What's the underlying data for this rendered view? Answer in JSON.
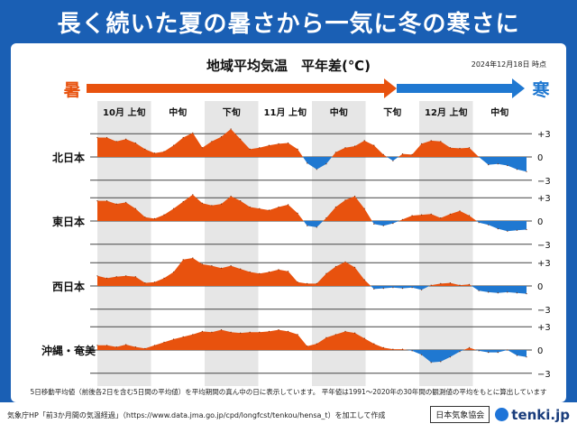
{
  "headline": "長く続いた夏の暑さから一気に冬の寒さに",
  "chart_data": {
    "type": "area",
    "title": "地域平均気温　平年差(℃)",
    "date_note": "2024年12月18日 時点",
    "arrow_left_label": "暑",
    "arrow_right_label": "寒",
    "periods": [
      "10月 上旬",
      "中旬",
      "下旬",
      "11月 上旬",
      "中旬",
      "下旬",
      "12月 上旬",
      "中旬"
    ],
    "yticks": [
      "+3",
      "0",
      "−3"
    ],
    "ylim": [
      -3,
      3
    ],
    "colors": {
      "warm": "#e8520e",
      "cold": "#1f78d1"
    },
    "series": [
      {
        "name": "北日本",
        "values": [
          2.5,
          2.5,
          2.0,
          2.3,
          1.8,
          1.0,
          0.5,
          0.7,
          1.5,
          2.5,
          3.1,
          1.2,
          2.0,
          2.6,
          3.6,
          2.3,
          1.0,
          1.2,
          1.5,
          1.7,
          1.8,
          1.0,
          -0.8,
          -1.6,
          -0.9,
          0.6,
          1.2,
          1.4,
          2.1,
          1.5,
          0.3,
          -0.5,
          0.4,
          0.3,
          1.7,
          2.1,
          2.0,
          1.2,
          1.1,
          1.2,
          0.0,
          -1.0,
          -0.9,
          -1.1,
          -1.6,
          -1.9
        ]
      },
      {
        "name": "東日本",
        "values": [
          2.6,
          2.6,
          2.2,
          2.4,
          1.6,
          0.5,
          0.3,
          0.8,
          1.6,
          2.5,
          3.4,
          2.3,
          2.0,
          2.2,
          3.2,
          2.6,
          1.8,
          1.6,
          1.4,
          1.8,
          2.1,
          1.0,
          -0.6,
          -0.8,
          0.4,
          1.8,
          2.7,
          3.2,
          1.6,
          -0.4,
          -0.6,
          -0.3,
          0.2,
          0.7,
          0.8,
          0.9,
          0.4,
          0.9,
          1.3,
          0.7,
          -0.2,
          -0.5,
          -1.0,
          -1.3,
          -1.2,
          -1.1
        ]
      },
      {
        "name": "西日本",
        "values": [
          1.3,
          1.0,
          1.2,
          1.3,
          1.2,
          0.4,
          0.5,
          1.0,
          1.8,
          3.4,
          3.6,
          2.8,
          2.6,
          2.3,
          2.6,
          2.2,
          1.8,
          1.6,
          1.8,
          2.1,
          1.9,
          0.5,
          0.3,
          0.3,
          1.6,
          2.5,
          3.1,
          2.4,
          0.8,
          -0.4,
          -0.3,
          -0.2,
          -0.3,
          -0.2,
          -0.5,
          0.1,
          0.3,
          0.4,
          0.1,
          0.2,
          -0.6,
          -0.8,
          -0.9,
          -0.8,
          -0.9,
          -1.0
        ]
      },
      {
        "name": "沖縄・奄美",
        "values": [
          0.6,
          0.6,
          0.4,
          0.7,
          0.4,
          0.2,
          0.6,
          1.0,
          1.4,
          1.7,
          2.0,
          2.4,
          2.3,
          2.6,
          2.3,
          2.2,
          2.3,
          2.3,
          2.4,
          2.6,
          2.4,
          2.0,
          0.5,
          0.8,
          1.6,
          2.0,
          2.4,
          2.2,
          1.5,
          0.8,
          0.3,
          0.1,
          0.1,
          -0.1,
          -0.6,
          -1.6,
          -1.5,
          -0.9,
          -0.2,
          0.3,
          -0.1,
          -0.3,
          -0.3,
          0.0,
          -0.7,
          -0.9
        ]
      }
    ],
    "note": "5日移動平均値（前後各2日を含む5日間の平均値）を平均期間の真ん中の日に表示しています。 平年値は1991～2020年の30年間の観測値の平均をもとに算出しています"
  },
  "footer": {
    "source": "気象庁HP「前3か月間の気温経過」（https://www.data.jma.go.jp/cpd/longfcst/tenkou/hensa_t）を加工して作成",
    "org": "日本気象協会",
    "brand": "tenki.jp"
  }
}
